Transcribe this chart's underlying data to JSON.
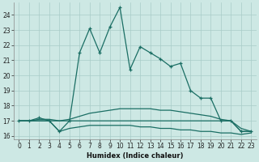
{
  "xlabel": "Humidex (Indice chaleur)",
  "bg_color": "#cde8e4",
  "grid_color": "#a8ccc8",
  "line_color": "#1a6e64",
  "ylim": [
    15.8,
    24.8
  ],
  "xlim": [
    -0.5,
    23.5
  ],
  "yticks": [
    16,
    17,
    18,
    19,
    20,
    21,
    22,
    23,
    24
  ],
  "xticks": [
    0,
    1,
    2,
    3,
    4,
    5,
    6,
    7,
    8,
    9,
    10,
    11,
    12,
    13,
    14,
    15,
    16,
    17,
    18,
    19,
    20,
    21,
    22,
    23
  ],
  "series": [
    {
      "x": [
        0,
        1,
        2,
        3,
        4,
        5,
        6,
        7,
        8,
        9,
        10,
        11,
        12,
        13,
        14,
        15,
        16,
        17,
        18,
        19,
        20,
        21,
        22,
        23
      ],
      "y": [
        17,
        17,
        17.2,
        17,
        16.3,
        17.0,
        21.5,
        23.1,
        21.5,
        23.2,
        24.5,
        20.4,
        21.9,
        21.5,
        21.1,
        20.6,
        20.8,
        19.0,
        18.5,
        18.5,
        17.0,
        17.0,
        16.3,
        16.3
      ],
      "marker": true,
      "lw": 0.9
    },
    {
      "x": [
        0,
        1,
        2,
        3,
        4,
        5,
        6,
        7,
        8,
        9,
        10,
        11,
        12,
        13,
        14,
        15,
        16,
        17,
        18,
        19,
        20,
        21,
        22,
        23
      ],
      "y": [
        17,
        17,
        17.1,
        17.1,
        17.0,
        17.1,
        17.3,
        17.5,
        17.6,
        17.7,
        17.8,
        17.8,
        17.8,
        17.8,
        17.7,
        17.7,
        17.6,
        17.5,
        17.4,
        17.3,
        17.1,
        17.0,
        16.5,
        16.3
      ],
      "marker": false,
      "lw": 0.9
    },
    {
      "x": [
        0,
        1,
        2,
        3,
        4,
        5,
        6,
        7,
        8,
        9,
        10,
        11,
        12,
        13,
        14,
        15,
        16,
        17,
        18,
        19,
        20,
        21,
        22,
        23
      ],
      "y": [
        17,
        17,
        17,
        17,
        16.3,
        16.5,
        16.6,
        16.7,
        16.7,
        16.7,
        16.7,
        16.7,
        16.6,
        16.6,
        16.5,
        16.5,
        16.4,
        16.4,
        16.3,
        16.3,
        16.2,
        16.2,
        16.1,
        16.2
      ],
      "marker": false,
      "lw": 0.9
    },
    {
      "x": [
        0,
        1,
        2,
        3,
        4,
        5,
        6,
        7,
        8,
        9,
        10,
        11,
        12,
        13,
        14,
        15,
        16,
        17,
        18,
        19,
        20,
        21,
        22,
        23
      ],
      "y": [
        17,
        17,
        17,
        17,
        17,
        17,
        17,
        17,
        17,
        17,
        17,
        17,
        17,
        17,
        17,
        17,
        17,
        17,
        17,
        17,
        17,
        17,
        16.3,
        16.3
      ],
      "marker": false,
      "lw": 0.9
    }
  ],
  "tick_fontsize": 5.5,
  "xlabel_fontsize": 6.0
}
